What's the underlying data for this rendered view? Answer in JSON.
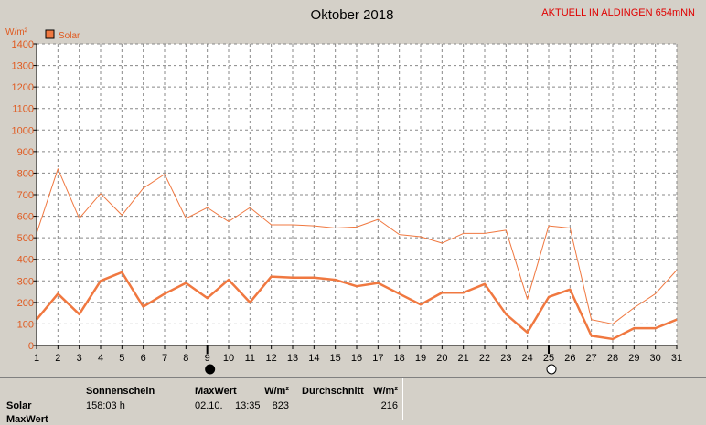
{
  "chart_data": {
    "type": "line",
    "title": "Oktober 2018",
    "station_label": "AKTUELL IN ALDINGEN 654mNN",
    "ylabel": "W/m²",
    "ylim": [
      0,
      1400
    ],
    "yticks": [
      0,
      100,
      200,
      300,
      400,
      500,
      600,
      700,
      800,
      900,
      1000,
      1100,
      1200,
      1300,
      1400
    ],
    "x": [
      1,
      2,
      3,
      4,
      5,
      6,
      7,
      8,
      9,
      10,
      11,
      12,
      13,
      14,
      15,
      16,
      17,
      18,
      19,
      20,
      21,
      22,
      23,
      24,
      25,
      26,
      27,
      28,
      29,
      30,
      31
    ],
    "grid": true,
    "legend": "top-left",
    "series": [
      {
        "name": "Solar",
        "role": "daily maximum",
        "color": "#f07840",
        "values": [
          520,
          820,
          590,
          705,
          605,
          730,
          795,
          590,
          640,
          575,
          640,
          560,
          560,
          555,
          545,
          550,
          585,
          515,
          505,
          475,
          520,
          520,
          535,
          215,
          555,
          545,
          120,
          100,
          175,
          240,
          350
        ]
      },
      {
        "name": "",
        "role": "daily average",
        "color": "#f07840",
        "values": [
          120,
          240,
          145,
          300,
          340,
          180,
          240,
          290,
          220,
          305,
          200,
          320,
          315,
          315,
          305,
          275,
          290,
          240,
          190,
          245,
          245,
          285,
          145,
          60,
          225,
          260,
          45,
          30,
          80,
          80,
          120
        ]
      }
    ],
    "markers": [
      {
        "day": 9,
        "symbol": "new-moon"
      },
      {
        "day": 25,
        "symbol": "full-moon"
      }
    ]
  },
  "summary": {
    "row_label": "Solar",
    "row_label_2": "MaxWert",
    "sonnenschein_header": "Sonnenschein",
    "sonnenschein_value": "158:03 h",
    "maxwert_header": "MaxWert",
    "maxwert_unit": "W/m²",
    "maxwert_date": "02.10.",
    "maxwert_time": "13:35",
    "maxwert_value": "823",
    "durchschnitt_header": "Durchschnitt",
    "durchschnitt_unit": "W/m²",
    "durchschnitt_value": "216"
  }
}
